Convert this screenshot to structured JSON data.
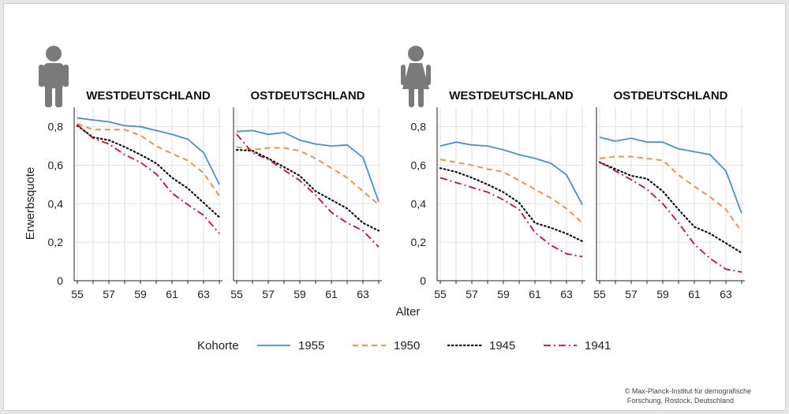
{
  "chart_data": {
    "type": "line",
    "x_axis_label": "Alter",
    "y_axis_label": "Erwerbsquote",
    "x_ticks": [
      55,
      57,
      59,
      61,
      63
    ],
    "y_ticks": [
      0,
      0.2,
      0.4,
      0.6,
      0.8
    ],
    "y_tick_labels": [
      "0",
      "0,2",
      "0,4",
      "0,6",
      "0,8"
    ],
    "x_tick_labels": [
      "55",
      "57",
      "59",
      "61",
      "63"
    ],
    "xlim": [
      55,
      64
    ],
    "ylim": [
      0,
      0.86
    ],
    "grid": true,
    "legend_title": "Kohorte",
    "legend_position": "bottom",
    "series_styles": [
      {
        "name": "1955",
        "color": "#4a8fd0",
        "dash": "solid"
      },
      {
        "name": "1950",
        "color": "#f08a3c",
        "dash": "dashed"
      },
      {
        "name": "1945",
        "color": "#111111",
        "dash": "dotted"
      },
      {
        "name": "1941",
        "color": "#c8102e",
        "dash": "dashdot"
      }
    ],
    "icons": [
      "male-person-icon",
      "female-person-icon"
    ],
    "panels": [
      {
        "title": "WESTDEUTSCHLAND",
        "group": "male",
        "series": [
          {
            "name": "1955",
            "x": [
              55,
              56,
              57,
              58,
              59,
              60,
              61,
              62,
              63,
              64
            ],
            "values": [
              0.845,
              0.835,
              0.825,
              0.805,
              0.8,
              0.78,
              0.76,
              0.735,
              0.665,
              0.5
            ]
          },
          {
            "name": "1950",
            "x": [
              55,
              56,
              57,
              58,
              59,
              60,
              61,
              62,
              63,
              64
            ],
            "values": [
              0.815,
              0.785,
              0.785,
              0.785,
              0.755,
              0.7,
              0.66,
              0.625,
              0.56,
              0.44
            ]
          },
          {
            "name": "1945",
            "x": [
              55,
              56,
              57,
              58,
              59,
              60,
              61,
              62,
              63,
              64
            ],
            "values": [
              0.805,
              0.745,
              0.73,
              0.695,
              0.655,
              0.61,
              0.535,
              0.48,
              0.405,
              0.33
            ]
          },
          {
            "name": "1941",
            "x": [
              55,
              56,
              57,
              58,
              59,
              60,
              61,
              62,
              63,
              64
            ],
            "values": [
              0.81,
              0.74,
              0.71,
              0.655,
              0.615,
              0.555,
              0.455,
              0.395,
              0.34,
              0.245
            ]
          }
        ]
      },
      {
        "title": "OSTDEUTSCHLAND",
        "group": "male",
        "series": [
          {
            "name": "1955",
            "x": [
              55,
              56,
              57,
              58,
              59,
              60,
              61,
              62,
              63,
              64
            ],
            "values": [
              0.775,
              0.78,
              0.76,
              0.77,
              0.73,
              0.71,
              0.7,
              0.705,
              0.64,
              0.41
            ]
          },
          {
            "name": "1950",
            "x": [
              55,
              56,
              57,
              58,
              59,
              60,
              61,
              62,
              63,
              64
            ],
            "values": [
              0.695,
              0.68,
              0.69,
              0.69,
              0.675,
              0.635,
              0.585,
              0.535,
              0.465,
              0.395
            ]
          },
          {
            "name": "1945",
            "x": [
              55,
              56,
              57,
              58,
              59,
              60,
              61,
              62,
              63,
              64
            ],
            "values": [
              0.68,
              0.675,
              0.635,
              0.59,
              0.545,
              0.465,
              0.42,
              0.375,
              0.3,
              0.26
            ]
          },
          {
            "name": "1941",
            "x": [
              55,
              56,
              57,
              58,
              59,
              60,
              61,
              62,
              63,
              64
            ],
            "values": [
              0.76,
              0.665,
              0.63,
              0.575,
              0.52,
              0.445,
              0.355,
              0.3,
              0.26,
              0.175
            ]
          }
        ]
      },
      {
        "title": "WESTDEUTSCHLAND",
        "group": "female",
        "series": [
          {
            "name": "1955",
            "x": [
              55,
              56,
              57,
              58,
              59,
              60,
              61,
              62,
              63,
              64
            ],
            "values": [
              0.7,
              0.72,
              0.705,
              0.7,
              0.68,
              0.655,
              0.635,
              0.61,
              0.55,
              0.395
            ]
          },
          {
            "name": "1950",
            "x": [
              55,
              56,
              57,
              58,
              59,
              60,
              61,
              62,
              63,
              64
            ],
            "values": [
              0.63,
              0.615,
              0.6,
              0.58,
              0.565,
              0.52,
              0.475,
              0.43,
              0.375,
              0.3
            ]
          },
          {
            "name": "1945",
            "x": [
              55,
              56,
              57,
              58,
              59,
              60,
              61,
              62,
              63,
              64
            ],
            "values": [
              0.585,
              0.565,
              0.535,
              0.5,
              0.46,
              0.405,
              0.3,
              0.275,
              0.245,
              0.205
            ]
          },
          {
            "name": "1941",
            "x": [
              55,
              56,
              57,
              58,
              59,
              60,
              61,
              62,
              63,
              64
            ],
            "values": [
              0.535,
              0.51,
              0.485,
              0.46,
              0.42,
              0.37,
              0.25,
              0.185,
              0.14,
              0.125
            ]
          }
        ]
      },
      {
        "title": "OSTDEUTSCHLAND",
        "group": "female",
        "series": [
          {
            "name": "1955",
            "x": [
              55,
              56,
              57,
              58,
              59,
              60,
              61,
              62,
              63,
              64
            ],
            "values": [
              0.745,
              0.725,
              0.74,
              0.72,
              0.72,
              0.685,
              0.67,
              0.655,
              0.57,
              0.35
            ]
          },
          {
            "name": "1950",
            "x": [
              55,
              56,
              57,
              58,
              59,
              60,
              61,
              62,
              63,
              64
            ],
            "values": [
              0.635,
              0.645,
              0.645,
              0.635,
              0.625,
              0.55,
              0.49,
              0.435,
              0.37,
              0.255
            ]
          },
          {
            "name": "1945",
            "x": [
              55,
              56,
              57,
              58,
              59,
              60,
              61,
              62,
              63,
              64
            ],
            "values": [
              0.615,
              0.58,
              0.545,
              0.53,
              0.465,
              0.37,
              0.28,
              0.245,
              0.195,
              0.145
            ]
          },
          {
            "name": "1941",
            "x": [
              55,
              56,
              57,
              58,
              59,
              60,
              61,
              62,
              63,
              64
            ],
            "values": [
              0.615,
              0.57,
              0.525,
              0.475,
              0.4,
              0.3,
              0.19,
              0.115,
              0.06,
              0.045
            ]
          }
        ]
      }
    ]
  },
  "credit": {
    "line1": "© Max-Planck-Institut für demografische",
    "line2": "Forschung, Rostock, Deutschland"
  }
}
